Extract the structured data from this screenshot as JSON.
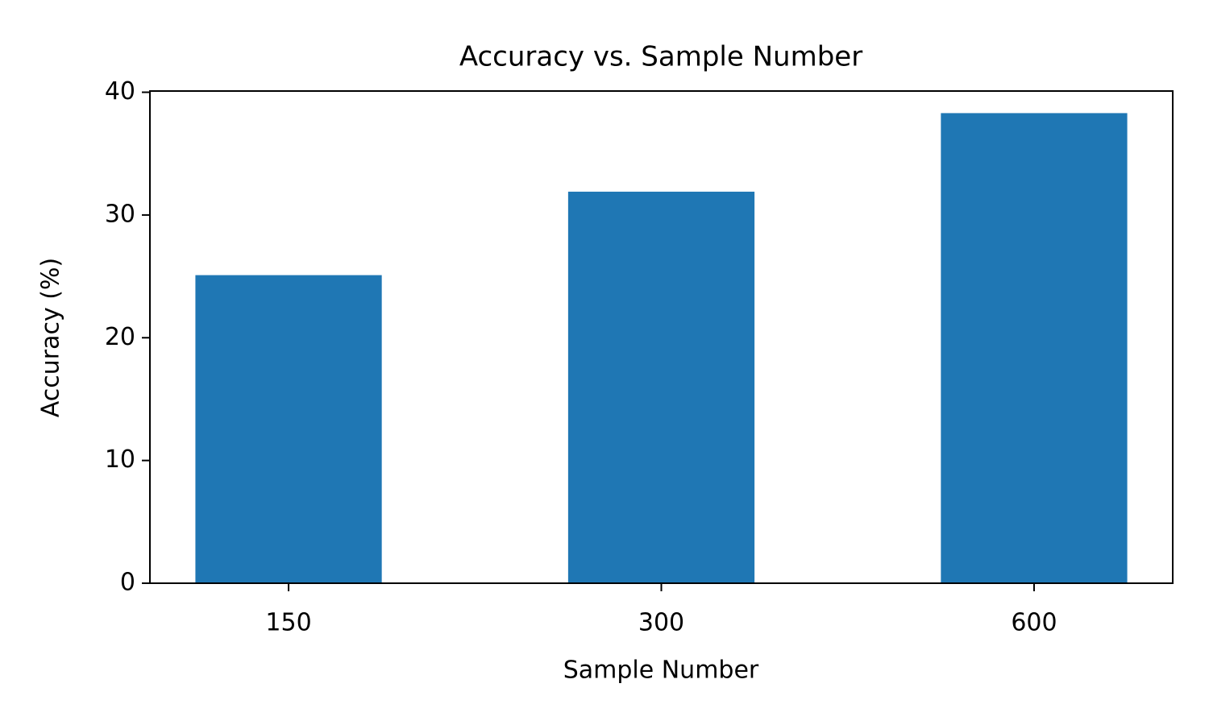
{
  "chart_data": {
    "type": "bar",
    "title": "Accuracy vs. Sample Number",
    "x_label": "Sample Number",
    "y_label": "Accuracy (%)",
    "categories": [
      "150",
      "300",
      "600"
    ],
    "values": [
      25.1,
      31.9,
      38.3
    ],
    "color": "#1f77b4",
    "ylim": [
      0,
      40.1
    ],
    "yticks": [
      0,
      10,
      20,
      30,
      40
    ],
    "grid": false
  }
}
